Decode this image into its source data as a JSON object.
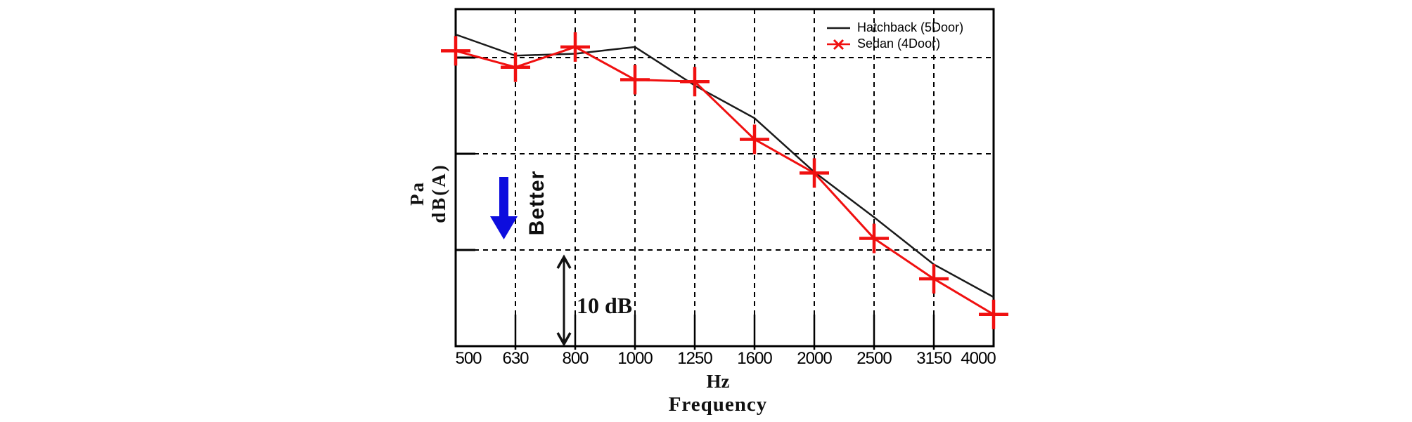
{
  "chart_data": {
    "type": "line",
    "title": "",
    "xlabel": "Frequency",
    "x_unit_label": "Hz",
    "ylabel_lines": [
      "Pa",
      "dB(A)"
    ],
    "categories": [
      "500",
      "630",
      "800",
      "1000",
      "1250",
      "1600",
      "2000",
      "2500",
      "3150",
      "4000"
    ],
    "x_axis_note": "1/3-octave bands, log-spaced, evenly drawn",
    "y_axis": {
      "numeric_labels_visible": false,
      "db_per_division": 10,
      "values_note": "values are dB relative to the bottom axis of the plot (no absolute scale shown)"
    },
    "grid": "dashed",
    "legend_position": "top-right-inside",
    "series": [
      {
        "name": "Hatchback (5Door)",
        "color": "#1a1a1a",
        "marker": "none",
        "values": [
          32.4,
          30.2,
          30.4,
          31.1,
          27.1,
          23.7,
          18.1,
          13.4,
          8.5,
          5.1
        ]
      },
      {
        "name": "Sedan (4Door)",
        "color": "#f01010",
        "marker": "plus",
        "values": [
          30.7,
          29.0,
          31.1,
          27.7,
          27.5,
          21.5,
          18.0,
          11.2,
          7.0,
          3.3
        ]
      }
    ],
    "annotations": {
      "better": {
        "label": "Better",
        "arrow_direction": "down",
        "arrow_color": "#0d0dde"
      },
      "scale": {
        "label": "10 dB",
        "span_db": 10,
        "arrow": "double-headed-vertical"
      }
    }
  }
}
